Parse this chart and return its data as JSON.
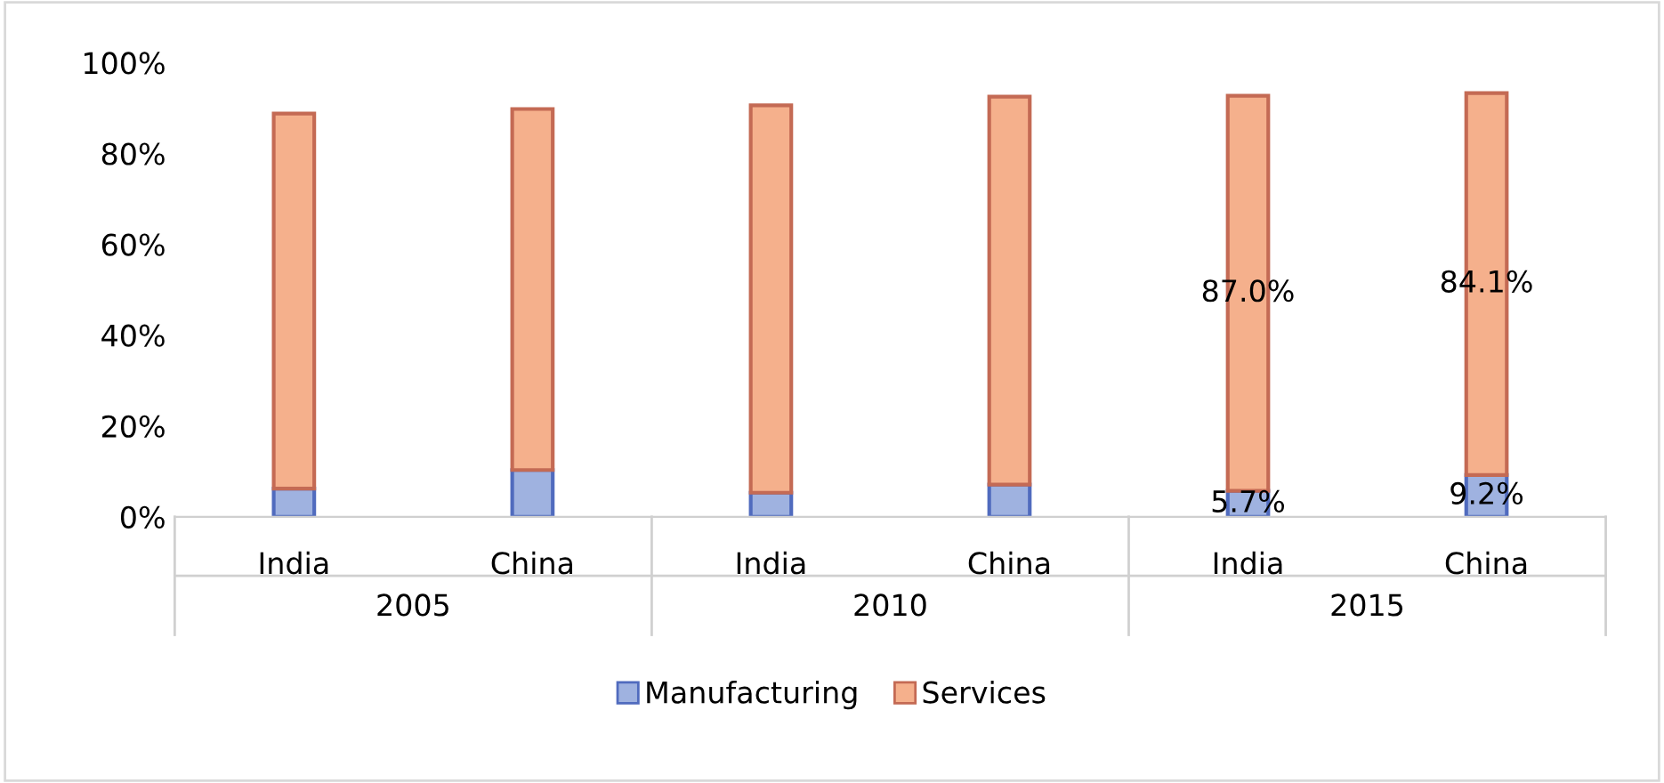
{
  "chart_data": {
    "type": "bar",
    "stacked": true,
    "categories": [
      "India",
      "China",
      "India",
      "China",
      "India",
      "China"
    ],
    "annotations": [
      "2005",
      "2010",
      "2015"
    ],
    "series": [
      {
        "name": "Manufacturing",
        "color": "#9fb2e0",
        "values": [
          6.2,
          10.3,
          5.3,
          7.1,
          5.7,
          9.2
        ],
        "value_labels": [
          null,
          null,
          null,
          null,
          "5.7%",
          "9.2%"
        ]
      },
      {
        "name": "Services",
        "color": "#f5b08c",
        "values": [
          82.6,
          79.5,
          85.3,
          85.4,
          87.0,
          84.1
        ],
        "value_labels": [
          null,
          null,
          null,
          null,
          "87.0%",
          "84.1%"
        ]
      }
    ],
    "ylim": [
      0,
      100
    ],
    "yticks": [
      {
        "value": 0,
        "label": "0%"
      },
      {
        "value": 20,
        "label": "20%"
      },
      {
        "value": 40,
        "label": "40%"
      },
      {
        "value": 60,
        "label": "60%"
      },
      {
        "value": 80,
        "label": "80%"
      },
      {
        "value": 100,
        "label": "100%"
      }
    ],
    "grid": false,
    "legend": "bottom"
  }
}
